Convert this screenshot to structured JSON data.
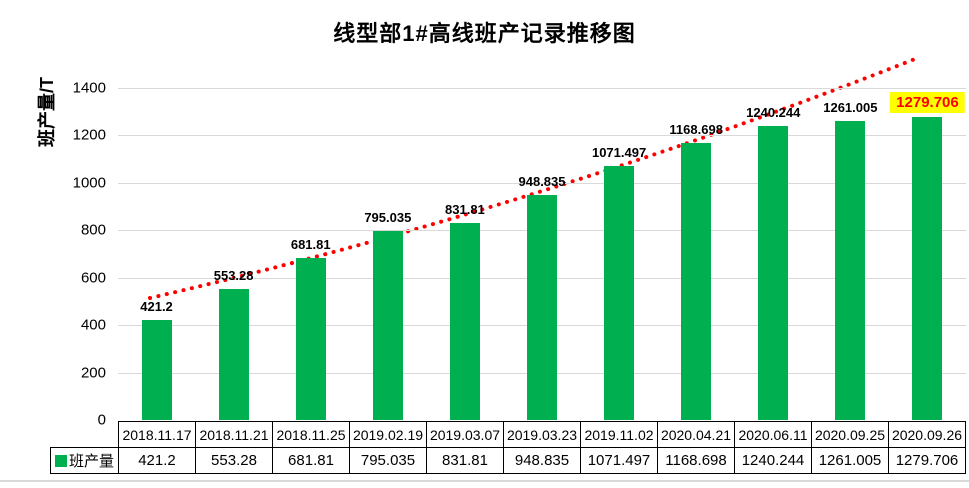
{
  "chart_data": {
    "type": "bar",
    "title": "线型部1#高线班产记录推移图",
    "ylabel": "班产量/T",
    "xlabel": "",
    "categories": [
      "2018.11.17",
      "2018.11.21",
      "2018.11.25",
      "2019.02.19",
      "2019.03.07",
      "2019.03.23",
      "2019.11.02",
      "2020.04.21",
      "2020.06.11",
      "2020.09.25",
      "2020.09.26"
    ],
    "series": [
      {
        "name": "班产量",
        "values": [
          421.2,
          553.28,
          681.81,
          795.035,
          831.81,
          948.835,
          1071.497,
          1168.698,
          1240.244,
          1261.005,
          1279.706
        ]
      }
    ],
    "data_labels": [
      "421.2",
      "553.28",
      "681.81",
      "795.035",
      "831.81",
      "948.835",
      "1071.497",
      "1168.698",
      "1240.244",
      "1261.005",
      "1279.706"
    ],
    "ylim": [
      0,
      1400
    ],
    "yticks": [
      0,
      200,
      400,
      600,
      800,
      1000,
      1200,
      1400
    ],
    "grid": true,
    "legend_position": "bottom-table",
    "legend_label": "班产量",
    "bar_color": "#00B050",
    "trendline": {
      "style": "dotted",
      "color": "#FF0000"
    },
    "last_label_highlight": {
      "background": "#FFFF00",
      "text_color": "#FF0000"
    }
  }
}
